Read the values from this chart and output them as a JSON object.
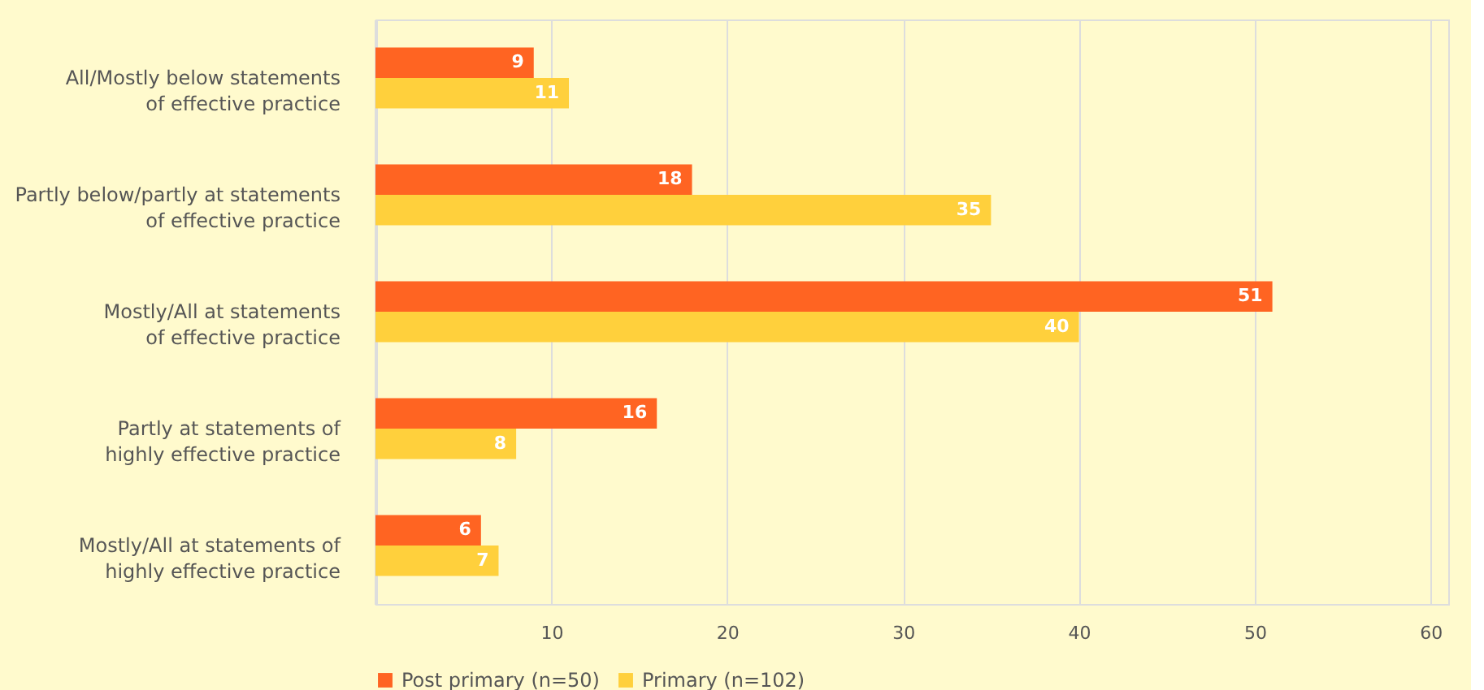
{
  "chart_data": {
    "type": "bar",
    "orientation": "horizontal",
    "categories": [
      "All/Mostly below statements\nof effective practice",
      "Partly below/partly at statements\nof effective practice",
      "Mostly/All at statements\nof effective practice",
      "Partly at statements of\nhighly effective practice",
      "Mostly/All at statements of\nhighly effective practice"
    ],
    "series": [
      {
        "name": "Post primary (n=50)",
        "color": "#ff6422",
        "values": [
          9,
          18,
          51,
          16,
          6
        ]
      },
      {
        "name": "Primary (n=102)",
        "color": "#ffd03c",
        "values": [
          11,
          35,
          40,
          8,
          7
        ]
      }
    ],
    "xlim": [
      0,
      61
    ],
    "xticks": [
      {
        "value": 0,
        "label": null
      },
      10,
      20,
      30,
      40,
      50,
      60
    ],
    "grid": "x",
    "legend": "bottom",
    "data_labels": true
  }
}
